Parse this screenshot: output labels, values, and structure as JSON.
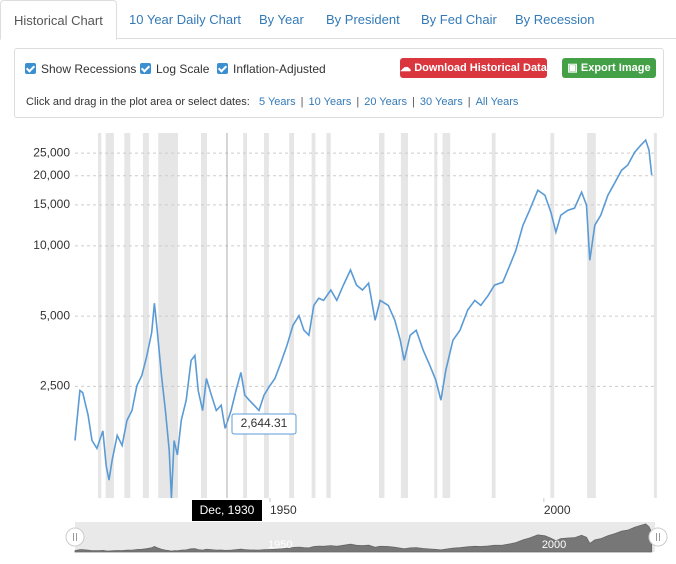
{
  "tabs": [
    "Historical Chart",
    "10 Year Daily Chart",
    "By Year",
    "By President",
    "By Fed Chair",
    "By Recession"
  ],
  "controls": {
    "checkboxes": [
      "Show Recessions",
      "Log Scale",
      "Inflation-Adjusted"
    ],
    "download_button": "Download Historical Data",
    "export_button": "Export Image",
    "date_prompt": "Click and drag in the plot area or select dates:",
    "date_ranges": [
      "5 Years",
      "10 Years",
      "20 Years",
      "30 Years",
      "All Years"
    ]
  },
  "chart_data": {
    "type": "line",
    "color": "#5b9bd5",
    "log_scale": true,
    "grid": true,
    "xlim": [
      1914.4,
      2020.3
    ],
    "xticks": [
      1950,
      2000
    ],
    "ylim": [
      830,
      30500
    ],
    "yticks": [
      {
        "value": 2500,
        "label": "2,500"
      },
      {
        "value": 5000,
        "label": "5,000"
      },
      {
        "value": 10000,
        "label": "10,000"
      },
      {
        "value": 15000,
        "label": "15,000"
      },
      {
        "value": 20000,
        "label": "20,000"
      },
      {
        "value": 25000,
        "label": "25,000"
      }
    ],
    "recessions": [
      [
        1918.6,
        1919.2
      ],
      [
        1920.0,
        1921.5
      ],
      [
        1923.4,
        1924.5
      ],
      [
        1926.8,
        1927.9
      ],
      [
        1929.6,
        1933.2
      ],
      [
        1937.4,
        1938.5
      ],
      [
        1945.1,
        1945.8
      ],
      [
        1948.9,
        1949.8
      ],
      [
        1953.5,
        1954.4
      ],
      [
        1957.6,
        1958.3
      ],
      [
        1960.3,
        1961.1
      ],
      [
        1969.9,
        1970.9
      ],
      [
        1973.9,
        1975.2
      ],
      [
        1980.0,
        1980.5
      ],
      [
        1981.5,
        1982.9
      ],
      [
        1990.5,
        1991.2
      ],
      [
        2001.2,
        2001.9
      ],
      [
        2007.9,
        2009.5
      ],
      [
        2020.1,
        2020.3
      ]
    ],
    "tooltip_date": "Dec, 1930",
    "tooltip_value": "2,644.31",
    "x": [
      1914.4,
      1915.3,
      1915.8,
      1916.8,
      1917.5,
      1918.4,
      1918.9,
      1919.5,
      1920.1,
      1920.6,
      1921.2,
      1922.1,
      1923.0,
      1923.9,
      1924.8,
      1925.7,
      1926.6,
      1927.5,
      1928.4,
      1928.9,
      1929.4,
      1930.2,
      1930.9,
      1931.6,
      1932.0,
      1932.5,
      1933.1,
      1933.8,
      1934.7,
      1935.6,
      1936.3,
      1936.9,
      1937.7,
      1938.4,
      1939.3,
      1940.2,
      1941.1,
      1941.8,
      1942.9,
      1943.8,
      1944.7,
      1945.4,
      1946.2,
      1947.1,
      1948.0,
      1948.9,
      1950.0,
      1950.9,
      1952.0,
      1953.1,
      1954.2,
      1955.3,
      1956.2,
      1957.1,
      1958.0,
      1958.9,
      1959.8,
      1961.1,
      1962.2,
      1963.4,
      1964.7,
      1965.8,
      1966.9,
      1968.0,
      1969.2,
      1970.1,
      1971.6,
      1972.8,
      1973.8,
      1974.5,
      1975.6,
      1976.7,
      1978.0,
      1979.2,
      1980.3,
      1981.2,
      1982.1,
      1983.4,
      1984.7,
      1986.1,
      1987.4,
      1988.5,
      1989.8,
      1991.0,
      1992.5,
      1993.8,
      1994.9,
      1996.2,
      1997.4,
      1998.9,
      2000.2,
      2001.3,
      2002.2,
      2003.1,
      2004.4,
      2005.6,
      2006.9,
      2007.8,
      2008.4,
      2009.3,
      2010.4,
      2011.7,
      2012.9,
      2014.2,
      2015.3,
      2016.6,
      2017.7,
      2018.6,
      2019.2,
      2019.7
    ],
    "values": [
      1465,
      2400,
      2350,
      1880,
      1465,
      1355,
      1465,
      1610,
      1140,
      990,
      1210,
      1540,
      1395,
      1790,
      1970,
      2520,
      2780,
      3360,
      4260,
      5680,
      4350,
      2780,
      1970,
      1330,
      830,
      1465,
      1270,
      1790,
      2180,
      3230,
      3390,
      2400,
      1970,
      2700,
      2290,
      1970,
      2075,
      1650,
      1970,
      2400,
      2870,
      2290,
      2180,
      2075,
      1970,
      2290,
      2520,
      2700,
      3160,
      3750,
      4570,
      5020,
      4350,
      4140,
      5560,
      5960,
      5840,
      6470,
      5840,
      6790,
      7890,
      6790,
      6470,
      6930,
      4800,
      5840,
      5560,
      4800,
      3940,
      3230,
      4140,
      4350,
      3560,
      3070,
      2650,
      2180,
      2930,
      3940,
      4350,
      5310,
      5840,
      5560,
      6120,
      6790,
      6980,
      8270,
      9590,
      12270,
      14230,
      17340,
      16510,
      13950,
      11450,
      13550,
      14230,
      14520,
      17000,
      14960,
      8690,
      12270,
      13550,
      16510,
      18570,
      21130,
      22200,
      25240,
      27040,
      28430,
      25760,
      20120
    ]
  }
}
